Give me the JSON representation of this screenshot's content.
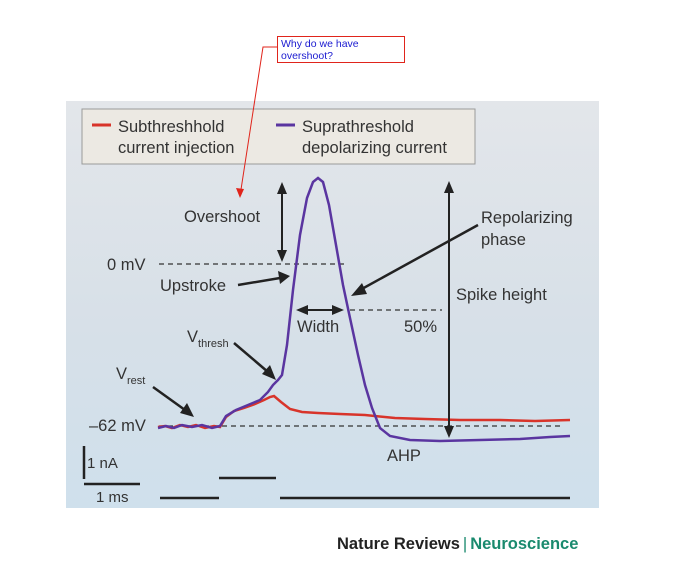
{
  "annotation": {
    "question": "Why do we have overshoot?",
    "color": "#e0241b",
    "text_color": "#1a1ad0"
  },
  "legend": {
    "sub_line1": "Subthreshhold",
    "sub_line2": "current injection",
    "supra_line1": "Suprathreshold",
    "supra_line2": "depolarizing current"
  },
  "labels": {
    "overshoot": "Overshoot",
    "repolarizing_line1": "Repolarizing",
    "repolarizing_line2": "phase",
    "zero_mv": "0 mV",
    "upstroke": "Upstroke",
    "spike_height": "Spike height",
    "width": "Width",
    "fifty": "50%",
    "v_thresh_main": "V",
    "v_thresh_sub": "thresh",
    "v_rest_main": "V",
    "v_rest_sub": "rest",
    "minus62": "–62 mV",
    "ahp": "AHP",
    "scale_na": "1 nA",
    "scale_ms": "1 ms"
  },
  "colors": {
    "subthreshold": "#d8342a",
    "suprathreshold": "#5a35a0"
  },
  "footer": {
    "part1": "Nature Reviews",
    "separator": "|",
    "part2": "Neuroscience"
  }
}
